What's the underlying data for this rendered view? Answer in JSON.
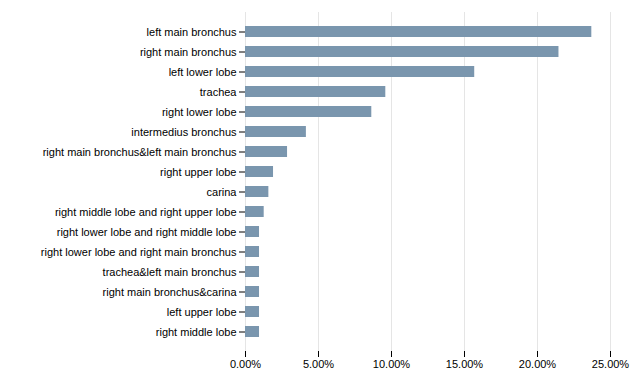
{
  "chart_data": {
    "type": "bar",
    "orientation": "horizontal",
    "categories": [
      "right middle lobe",
      "left upper lobe",
      "right main bronchus&carina",
      "trachea&left main bronchus",
      "right lower lobe and right main bronchus",
      "right lower lobe and right middle lobe",
      "right middle lobe and right upper lobe",
      "carina",
      "right upper lobe",
      "right main bronchus&left main bronchus",
      "intermedius bronchus",
      "right lower lobe",
      "trachea",
      "left lower lobe",
      "right main bronchus",
      "left main bronchus"
    ],
    "values": [
      0.0096,
      0.0096,
      0.0096,
      0.0096,
      0.0096,
      0.0096,
      0.0128,
      0.016,
      0.0192,
      0.0288,
      0.0417,
      0.0865,
      0.0961,
      0.157,
      0.2147,
      0.2372
    ],
    "color": "#7a96ae",
    "xlim": [
      0,
      0.25
    ],
    "xticks": [
      {
        "value": 0.0,
        "label": "0.00%"
      },
      {
        "value": 0.05,
        "label": "5.00%"
      },
      {
        "value": 0.1,
        "label": "10.00%"
      },
      {
        "value": 0.15,
        "label": "15.00%"
      },
      {
        "value": 0.2,
        "label": "20.00%"
      },
      {
        "value": 0.25,
        "label": "25.00%"
      }
    ],
    "grid": true
  }
}
